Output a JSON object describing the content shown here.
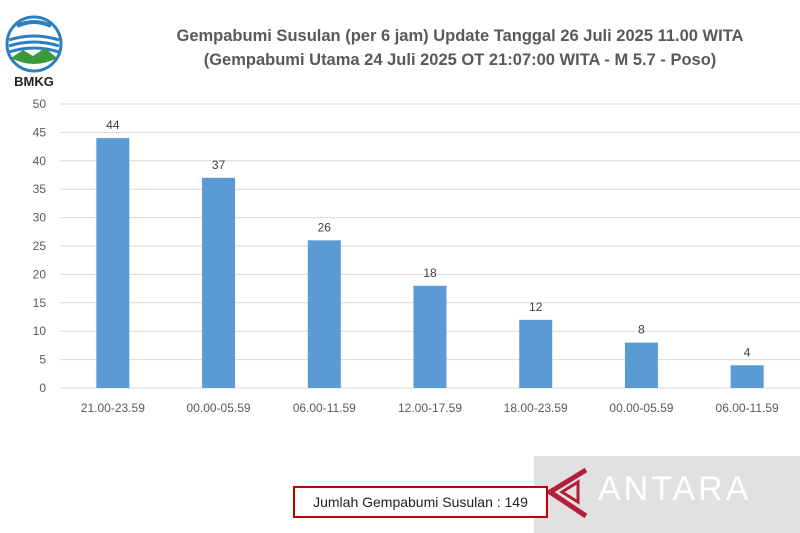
{
  "header": {
    "title_line1": "Gempabumi Susulan (per 6 jam) Update Tanggal 26 Juli 2025 11.00 WITA",
    "title_line2": "(Gempabumi Utama 24 Juli 2025 OT 21:07:00 WITA - M 5.7 - Poso)"
  },
  "logo": {
    "text": "BMKG",
    "icon": "bmkg-logo"
  },
  "total_label": "Jumlah Gempabumi Susulan : 149",
  "watermark": {
    "text": "ANTARA",
    "icon": "antara-logo"
  },
  "colors": {
    "bar": "#5b9bd5",
    "grid": "#d9d9d9",
    "axis_text": "#595959",
    "box_border": "#c00000"
  },
  "chart_data": {
    "type": "bar",
    "title": "Gempabumi Susulan (per 6 jam) Update Tanggal 26 Juli 2025 11.00 WITA",
    "subtitle": "(Gempabumi Utama 24 Juli 2025 OT 21:07:00 WITA - M 5.7 - Poso)",
    "categories": [
      "21.00-23.59",
      "00.00-05.59",
      "06.00-11.59",
      "12.00-17.59",
      "18.00-23.59",
      "00.00-05.59",
      "06.00-11.59"
    ],
    "values": [
      44,
      37,
      26,
      18,
      12,
      8,
      4
    ],
    "ylim": [
      0,
      50
    ],
    "yticks": [
      0,
      5,
      10,
      15,
      20,
      25,
      30,
      35,
      40,
      45,
      50
    ],
    "grid": true,
    "data_labels": true
  }
}
